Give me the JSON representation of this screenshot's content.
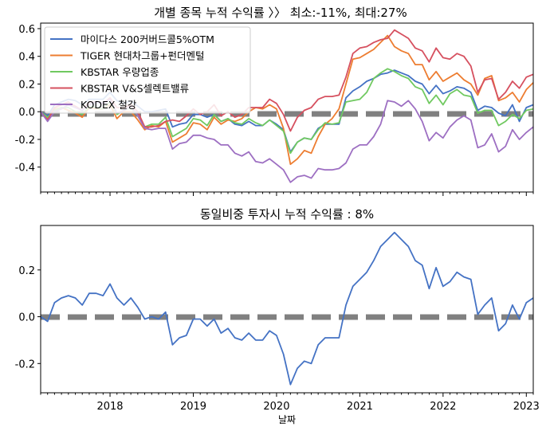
{
  "chart_data": [
    {
      "type": "line",
      "title": "개별 종목 누적 수익률 〉〉 최소:-11%, 최대:27%",
      "ylim": [
        -0.58,
        0.64
      ],
      "yticks": [
        0.6,
        0.4,
        0.2,
        0.0,
        -0.2,
        -0.4
      ],
      "yticklabels": [
        "0.6",
        "0.4",
        "0.2",
        "0.0",
        "-0.2",
        "-0.4"
      ],
      "grid": false,
      "legend": "top-left",
      "reference_line": 0.0,
      "series": [
        {
          "name": "마이다스 200커버드콜5%OTM",
          "color": "#4472c4",
          "values": [
            0.0,
            -0.03,
            0.05,
            0.07,
            0.09,
            0.08,
            0.05,
            0.09,
            0.09,
            0.09,
            0.14,
            0.08,
            0.06,
            0.08,
            0.04,
            0.0,
            0.0,
            0.01,
            0.02,
            -0.11,
            -0.09,
            -0.08,
            -0.02,
            -0.02,
            -0.04,
            -0.02,
            -0.07,
            -0.05,
            -0.09,
            -0.1,
            -0.07,
            -0.1,
            -0.1,
            -0.06,
            -0.09,
            -0.13,
            -0.29,
            -0.22,
            -0.19,
            -0.2,
            -0.12,
            -0.09,
            -0.09,
            -0.09,
            0.1,
            0.15,
            0.18,
            0.22,
            0.24,
            0.27,
            0.28,
            0.3,
            0.28,
            0.26,
            0.22,
            0.2,
            0.13,
            0.19,
            0.13,
            0.15,
            0.18,
            0.17,
            0.14,
            0.01,
            0.04,
            0.03,
            -0.01,
            -0.03,
            0.05,
            -0.07,
            0.03,
            0.05
          ]
        },
        {
          "name": "TIGER 현대차그룹+펀더멘털",
          "color": "#ed7d31",
          "values": [
            0.0,
            -0.05,
            0.02,
            0.03,
            0.01,
            -0.01,
            -0.04,
            0.03,
            0.02,
            0.02,
            0.05,
            -0.05,
            0.0,
            0.0,
            -0.06,
            -0.13,
            -0.1,
            -0.11,
            -0.07,
            -0.22,
            -0.19,
            -0.16,
            -0.08,
            -0.09,
            -0.13,
            -0.04,
            -0.09,
            -0.06,
            -0.07,
            -0.05,
            0.0,
            0.03,
            0.02,
            0.05,
            0.02,
            -0.12,
            -0.38,
            -0.34,
            -0.28,
            -0.3,
            -0.18,
            -0.09,
            -0.05,
            0.02,
            0.2,
            0.38,
            0.39,
            0.42,
            0.45,
            0.5,
            0.55,
            0.47,
            0.44,
            0.42,
            0.34,
            0.34,
            0.23,
            0.29,
            0.22,
            0.25,
            0.28,
            0.23,
            0.2,
            0.12,
            0.24,
            0.26,
            0.08,
            0.1,
            0.14,
            0.07,
            0.16,
            0.21
          ]
        },
        {
          "name": "KBSTAR 우량업종",
          "color": "#70c960",
          "values": [
            0.0,
            -0.04,
            0.01,
            0.03,
            0.03,
            0.0,
            -0.02,
            0.04,
            0.03,
            0.02,
            0.07,
            -0.02,
            0.01,
            0.03,
            -0.03,
            -0.11,
            -0.09,
            -0.09,
            -0.04,
            -0.18,
            -0.15,
            -0.12,
            -0.05,
            -0.06,
            -0.1,
            -0.02,
            -0.07,
            -0.05,
            -0.08,
            -0.09,
            -0.05,
            -0.08,
            -0.1,
            -0.06,
            -0.1,
            -0.14,
            -0.3,
            -0.22,
            -0.19,
            -0.2,
            -0.13,
            -0.08,
            -0.09,
            -0.08,
            0.07,
            0.08,
            0.09,
            0.14,
            0.24,
            0.28,
            0.31,
            0.29,
            0.26,
            0.24,
            0.18,
            0.16,
            0.06,
            0.12,
            0.05,
            0.13,
            0.16,
            0.12,
            0.11,
            -0.01,
            0.01,
            0.01,
            -0.1,
            -0.07,
            -0.02,
            -0.05,
            0.01,
            0.02
          ]
        },
        {
          "name": "KBSTAR V&S셀렉트밸류",
          "color": "#d6505f",
          "values": [
            0.0,
            -0.06,
            0.03,
            0.05,
            0.07,
            0.04,
            0.01,
            0.07,
            0.07,
            0.06,
            0.1,
            0.03,
            0.03,
            0.05,
            0.0,
            -0.11,
            -0.11,
            -0.1,
            -0.07,
            -0.06,
            -0.07,
            -0.03,
            0.02,
            -0.02,
            0.0,
            0.05,
            -0.03,
            0.0,
            -0.04,
            -0.02,
            0.03,
            0.03,
            0.03,
            0.09,
            0.06,
            -0.02,
            -0.14,
            -0.04,
            0.01,
            0.03,
            0.09,
            0.11,
            0.11,
            0.12,
            0.25,
            0.42,
            0.46,
            0.47,
            0.5,
            0.52,
            0.53,
            0.59,
            0.56,
            0.53,
            0.46,
            0.44,
            0.36,
            0.46,
            0.39,
            0.38,
            0.42,
            0.4,
            0.33,
            0.14,
            0.23,
            0.24,
            0.09,
            0.14,
            0.22,
            0.17,
            0.25,
            0.27
          ]
        },
        {
          "name": "KODEX 철강",
          "color": "#9d6fc2",
          "values": [
            0.0,
            -0.07,
            0.0,
            0.02,
            0.05,
            0.03,
            0.01,
            0.05,
            0.07,
            0.06,
            0.09,
            -0.01,
            0.01,
            0.04,
            -0.03,
            -0.12,
            -0.13,
            -0.12,
            -0.12,
            -0.27,
            -0.23,
            -0.22,
            -0.17,
            -0.17,
            -0.19,
            -0.2,
            -0.24,
            -0.24,
            -0.3,
            -0.32,
            -0.29,
            -0.36,
            -0.37,
            -0.34,
            -0.38,
            -0.42,
            -0.51,
            -0.47,
            -0.46,
            -0.48,
            -0.41,
            -0.42,
            -0.42,
            -0.41,
            -0.37,
            -0.27,
            -0.24,
            -0.24,
            -0.18,
            -0.09,
            0.08,
            0.07,
            0.04,
            0.08,
            0.02,
            -0.07,
            -0.21,
            -0.15,
            -0.19,
            -0.11,
            -0.06,
            -0.03,
            -0.06,
            -0.26,
            -0.24,
            -0.16,
            -0.29,
            -0.25,
            -0.13,
            -0.2,
            -0.15,
            -0.11
          ]
        }
      ]
    },
    {
      "type": "line",
      "title": "동일비중 투자시 누적 수익률 : 8%",
      "xlabel": "날짜",
      "ylim": [
        -0.325,
        0.39
      ],
      "yticks": [
        0.2,
        0.0,
        -0.2
      ],
      "yticklabels": [
        "0.2",
        "0.0",
        "-0.2"
      ],
      "xticklabels": [
        "2018",
        "2019",
        "2020",
        "2021",
        "2022",
        "2023"
      ],
      "grid": false,
      "reference_line": 0.0,
      "series": [
        {
          "color": "#4472c4",
          "values": [
            0.0,
            -0.02,
            0.06,
            0.08,
            0.09,
            0.08,
            0.05,
            0.1,
            0.1,
            0.09,
            0.14,
            0.08,
            0.05,
            0.08,
            0.04,
            -0.01,
            0.0,
            -0.01,
            0.02,
            -0.12,
            -0.09,
            -0.08,
            -0.01,
            -0.01,
            -0.04,
            -0.01,
            -0.07,
            -0.05,
            -0.09,
            -0.1,
            -0.07,
            -0.1,
            -0.1,
            -0.06,
            -0.08,
            -0.16,
            -0.29,
            -0.22,
            -0.19,
            -0.2,
            -0.12,
            -0.09,
            -0.09,
            -0.09,
            0.05,
            0.13,
            0.16,
            0.19,
            0.24,
            0.3,
            0.33,
            0.36,
            0.33,
            0.3,
            0.24,
            0.22,
            0.12,
            0.21,
            0.13,
            0.15,
            0.19,
            0.17,
            0.16,
            0.01,
            0.05,
            0.08,
            -0.06,
            -0.03,
            0.05,
            -0.01,
            0.06,
            0.08
          ]
        }
      ]
    }
  ]
}
